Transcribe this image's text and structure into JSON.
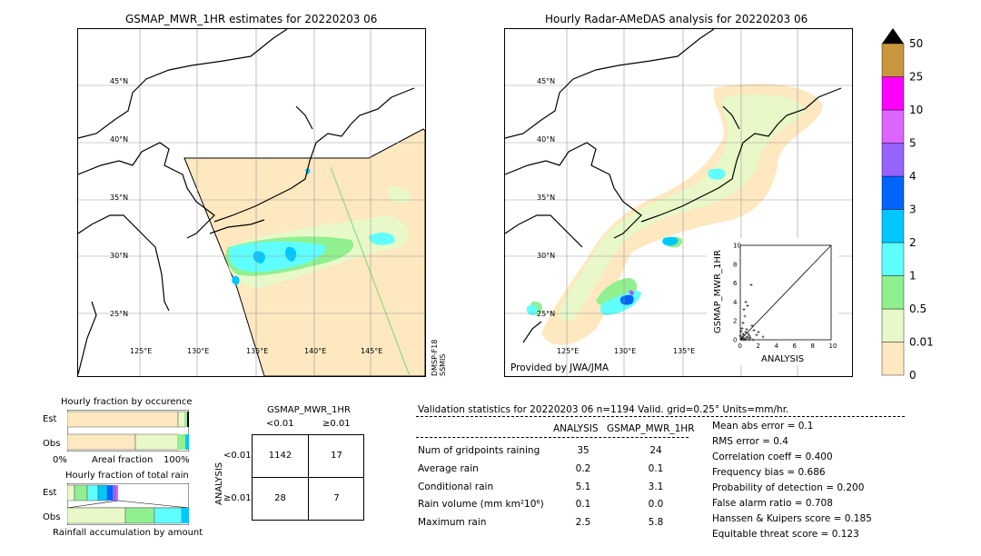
{
  "left_map": {
    "title": "GSMAP_MWR_1HR estimates for 20220203 06",
    "lat_labels": [
      "45°N",
      "40°N",
      "35°N",
      "30°N",
      "25°N"
    ],
    "lon_labels": [
      "125°E",
      "130°E",
      "135°E",
      "140°E",
      "145°E"
    ],
    "side_label": "DMSP-F18 SSMIS"
  },
  "right_map": {
    "title": "Hourly Radar-AMeDAS analysis for 20220203 06",
    "lat_labels": [
      "45°N",
      "40°N",
      "35°N",
      "30°N",
      "25°N"
    ],
    "lon_labels": [
      "125°E",
      "130°E",
      "135°E"
    ],
    "credit": "Provided by JWA/JMA"
  },
  "colorbar": {
    "levels": [
      "0",
      "0.01",
      "0.5",
      "1",
      "2",
      "3",
      "4",
      "5",
      "10",
      "25",
      "50"
    ],
    "colors": [
      "#fde8c0",
      "#e8f8c8",
      "#90f090",
      "#60ffff",
      "#00c8ff",
      "#0064ff",
      "#9664ff",
      "#dc64ff",
      "#ff00ff",
      "#c8963c"
    ]
  },
  "scatter": {
    "xlabel": "ANALYSIS",
    "ylabel": "GSMAP_MWR_1HR",
    "ticks": [
      "0",
      "2",
      "4",
      "6",
      "8",
      "10"
    ],
    "top_tick": "10"
  },
  "hourly_occurrence": {
    "title": "Hourly fraction by occurence",
    "row_labels": [
      "Est",
      "Obs"
    ],
    "axis_left": "0%",
    "axis_mid": "Areal fraction",
    "axis_right": "100%"
  },
  "hourly_total": {
    "title": "Hourly fraction of total rain",
    "row_labels": [
      "Est",
      "Obs"
    ],
    "axis_label": "Rainfall accumulation by amount"
  },
  "contingency": {
    "title": "GSMAP_MWR_1HR",
    "col_labels": [
      "<0.01",
      "≥0.01"
    ],
    "row_labels": [
      "<0.01",
      "≥0.01"
    ],
    "side_label": "ANALYSIS",
    "cells": [
      "1142",
      "17",
      "28",
      "7"
    ]
  },
  "validation": {
    "header": "Validation statistics for 20220203 06  n=1194 Valid. grid=0.25° Units=mm/hr.",
    "col_analysis": "ANALYSIS",
    "col_gsmap": "GSMAP_MWR_1HR",
    "rows": [
      {
        "label": "Num of gridpoints raining",
        "a": "35",
        "g": "24"
      },
      {
        "label": "Average rain",
        "a": "0.2",
        "g": "0.1"
      },
      {
        "label": "Conditional rain",
        "a": "5.1",
        "g": "3.1"
      },
      {
        "label": "Rain volume (mm km²10⁶)",
        "a": "0.1",
        "g": "0.0"
      },
      {
        "label": "Maximum rain",
        "a": "2.5",
        "g": "5.8"
      }
    ],
    "scores": [
      "Mean abs error =    0.1",
      "RMS error =    0.4",
      "Correlation coeff =  0.400",
      "Frequency bias =  0.686",
      "Probability of detection =  0.200",
      "False alarm ratio =  0.708",
      "Hanssen & Kuipers score =  0.185",
      "Equitable threat score =  0.123"
    ]
  },
  "chart_data": [
    {
      "type": "scatter",
      "xlabel": "ANALYSIS",
      "ylabel": "GSMAP_MWR_1HR",
      "xlim": [
        0,
        10
      ],
      "ylim": [
        0,
        10
      ],
      "points": [
        [
          0.1,
          0.1
        ],
        [
          0.2,
          0.3
        ],
        [
          0.3,
          0.2
        ],
        [
          0.4,
          0.5
        ],
        [
          0.5,
          0.1
        ],
        [
          0.6,
          0.8
        ],
        [
          0.7,
          0.3
        ],
        [
          0.8,
          0.2
        ],
        [
          0.9,
          0.6
        ],
        [
          1.0,
          0.4
        ],
        [
          0.2,
          1.2
        ],
        [
          0.3,
          1.8
        ],
        [
          0.5,
          2.5
        ],
        [
          0.4,
          3.2
        ],
        [
          0.6,
          4.0
        ],
        [
          0.8,
          3.6
        ],
        [
          1.2,
          5.8
        ],
        [
          1.5,
          1.0
        ],
        [
          1.8,
          0.5
        ],
        [
          2.5,
          0.3
        ],
        [
          0.1,
          0.9
        ],
        [
          0.3,
          0.6
        ],
        [
          1.1,
          0.2
        ],
        [
          1.3,
          1.5
        ],
        [
          0.7,
          1.1
        ],
        [
          2.0,
          0.8
        ],
        [
          0.2,
          0.0
        ],
        [
          0.4,
          0.0
        ],
        [
          0.6,
          0.0
        ],
        [
          1.0,
          0.0
        ],
        [
          1.4,
          0.0
        ],
        [
          0.0,
          0.4
        ]
      ]
    }
  ]
}
